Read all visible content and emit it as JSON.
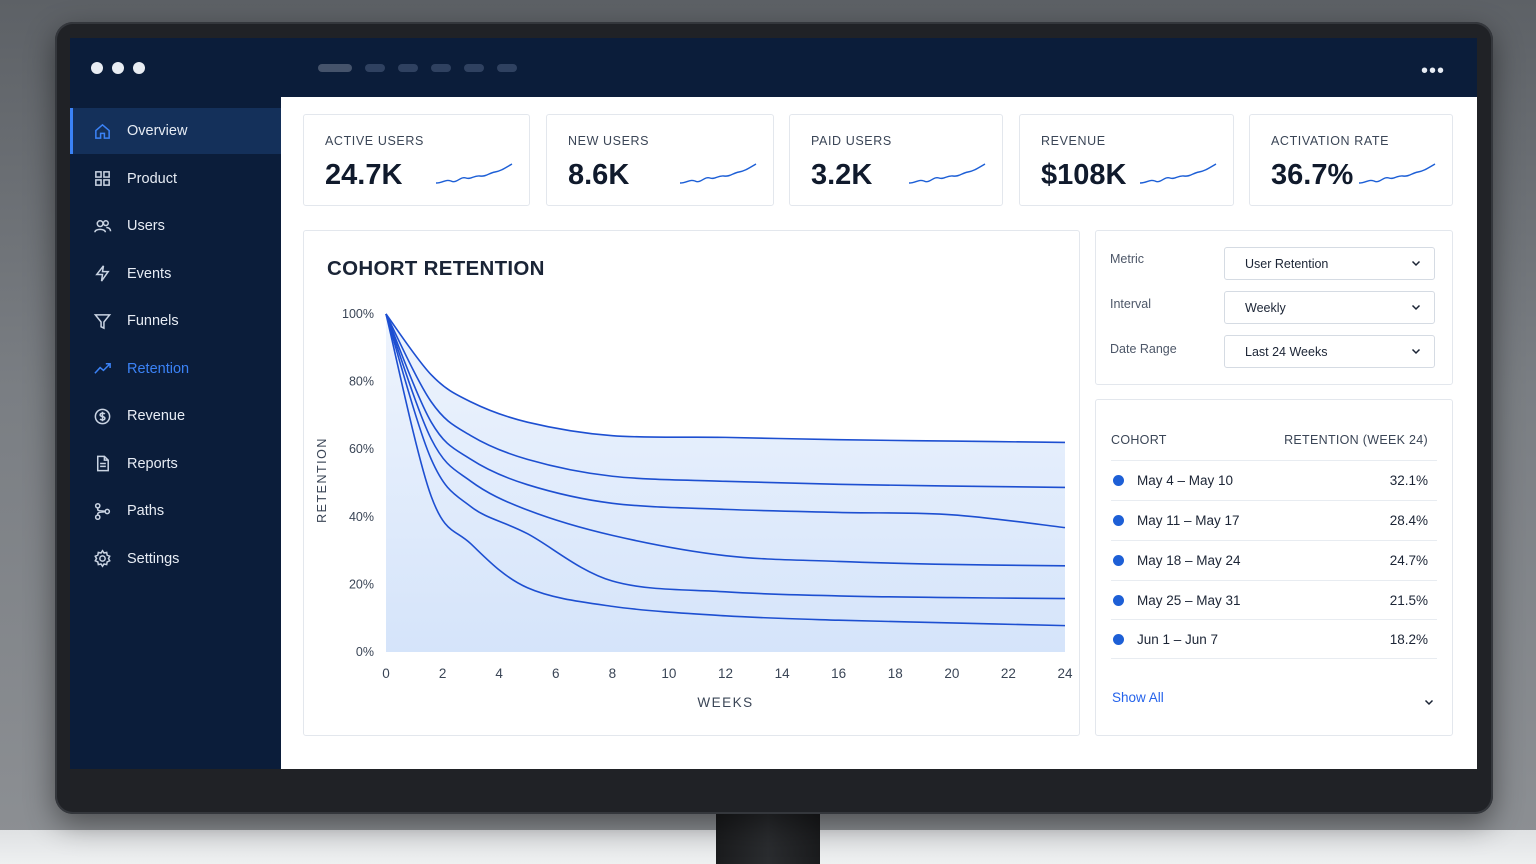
{
  "nav": {
    "items": [
      {
        "label": "Overview",
        "icon": "home-icon"
      },
      {
        "label": "Product",
        "icon": "grid-icon"
      },
      {
        "label": "Users",
        "icon": "users-icon"
      },
      {
        "label": "Events",
        "icon": "lightning-icon"
      },
      {
        "label": "Funnels",
        "icon": "funnel-icon"
      },
      {
        "label": "Retention",
        "icon": "trend-icon"
      },
      {
        "label": "Revenue",
        "icon": "dollar-icon"
      },
      {
        "label": "Reports",
        "icon": "document-icon"
      },
      {
        "label": "Paths",
        "icon": "paths-icon"
      },
      {
        "label": "Settings",
        "icon": "gear-icon"
      }
    ]
  },
  "kpis": [
    {
      "label": "ACTIVE USERS",
      "value": "24.7K"
    },
    {
      "label": "NEW USERS",
      "value": "8.6K"
    },
    {
      "label": "PAID USERS",
      "value": "3.2K"
    },
    {
      "label": "REVENUE",
      "value": "$108K"
    },
    {
      "label": "ACTIVATION RATE",
      "value": "36.7%"
    }
  ],
  "chart": {
    "title": "COHORT RETENTION"
  },
  "controls": {
    "metric_label": "Metric",
    "metric_value": "User Retention",
    "interval_label": "Interval",
    "interval_value": "Weekly",
    "range_label": "Date Range",
    "range_value": "Last 24 Weeks"
  },
  "cohort_table": {
    "col_cohort": "COHORT",
    "col_retention": "RETENTION (WEEK 24)",
    "rows": [
      {
        "cohort": "May 4 – May 10",
        "retention": "32.1%"
      },
      {
        "cohort": "May 11 – May 17",
        "retention": "28.4%"
      },
      {
        "cohort": "May 18 – May 24",
        "retention": "24.7%"
      },
      {
        "cohort": "May 25 – May 31",
        "retention": "21.5%"
      },
      {
        "cohort": "Jun 1 – Jun 7",
        "retention": "18.2%"
      }
    ],
    "show_all": "Show All"
  },
  "colors": {
    "accent": "#2563eb",
    "sidebar": "#0b1d3a",
    "line": "#1d4fd1",
    "fill": "#dbe8fb"
  },
  "chart_data": {
    "type": "line",
    "title": "COHORT RETENTION",
    "xlabel": "WEEKS",
    "ylabel": "RETENTION",
    "xlim": [
      0,
      24
    ],
    "ylim": [
      0,
      100
    ],
    "x_ticks": [
      0,
      2,
      4,
      6,
      8,
      10,
      12,
      14,
      16,
      18,
      20,
      22,
      24
    ],
    "y_ticks": [
      "0%",
      "20%",
      "40%",
      "60%",
      "80%",
      "100%"
    ],
    "y_tick_values": [
      0,
      20,
      40,
      60,
      80,
      100
    ],
    "fill_under": true,
    "x": [
      0,
      1.6,
      3,
      5,
      8,
      12,
      16,
      20,
      24
    ],
    "series": [
      {
        "values": [
          100,
          82,
          74,
          68,
          64,
          63.5,
          62.8,
          62.4,
          62
        ]
      },
      {
        "values": [
          100,
          74,
          64,
          57,
          52,
          50.5,
          49.6,
          49.1,
          48.7
        ]
      },
      {
        "values": [
          100,
          68,
          57,
          49.5,
          44,
          42.2,
          41.3,
          40.6,
          36.8
        ]
      },
      {
        "values": [
          100,
          63,
          50.5,
          42,
          34.5,
          28.5,
          26.8,
          25.9,
          25.5
        ]
      },
      {
        "values": [
          100,
          57,
          43,
          35,
          21,
          17.8,
          16.6,
          16.1,
          15.8
        ]
      },
      {
        "values": [
          100,
          46,
          32,
          19,
          13.5,
          10.7,
          9.4,
          8.6,
          7.8
        ]
      }
    ]
  }
}
